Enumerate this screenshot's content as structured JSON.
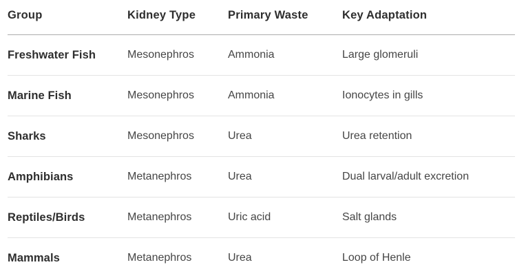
{
  "table": {
    "columns": [
      {
        "label": "Group"
      },
      {
        "label": "Kidney Type"
      },
      {
        "label": "Primary Waste"
      },
      {
        "label": "Key Adaptation"
      }
    ],
    "rows": [
      {
        "group": "Freshwater Fish",
        "kidney_type": "Mesonephros",
        "primary_waste": "Ammonia",
        "key_adaptation": "Large glomeruli"
      },
      {
        "group": "Marine Fish",
        "kidney_type": "Mesonephros",
        "primary_waste": "Ammonia",
        "key_adaptation": "Ionocytes in gills"
      },
      {
        "group": "Sharks",
        "kidney_type": "Mesonephros",
        "primary_waste": "Urea",
        "key_adaptation": "Urea retention"
      },
      {
        "group": "Amphibians",
        "kidney_type": "Metanephros",
        "primary_waste": "Urea",
        "key_adaptation": "Dual larval/adult excretion"
      },
      {
        "group": "Reptiles/Birds",
        "kidney_type": "Metanephros",
        "primary_waste": "Uric acid",
        "key_adaptation": "Salt glands"
      },
      {
        "group": "Mammals",
        "kidney_type": "Metanephros",
        "primary_waste": "Urea",
        "key_adaptation": "Loop of Henle"
      }
    ]
  },
  "colors": {
    "background": "#ffffff",
    "header_text": "#2e2e2e",
    "body_text": "#454545",
    "header_border": "#acacac",
    "row_border": "#e3e3e3"
  }
}
